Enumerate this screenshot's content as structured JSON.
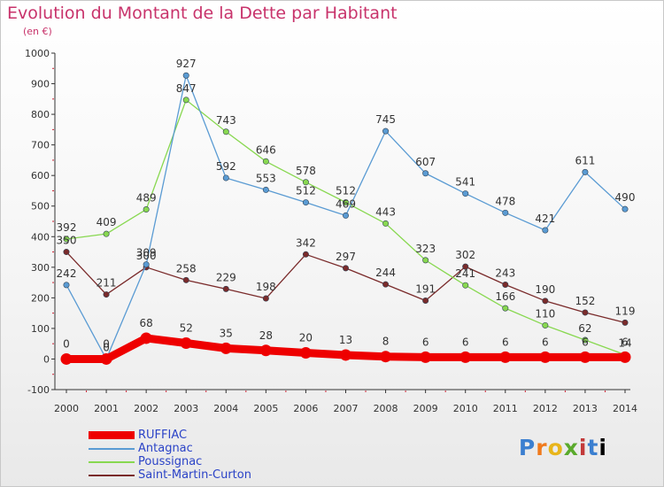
{
  "header": {
    "title": "Evolution du Montant de la Dette par Habitant",
    "subtitle": "(en €)"
  },
  "logo": {
    "letters": [
      "P",
      "r",
      "o",
      "x",
      "i",
      "t",
      "i"
    ]
  },
  "chart_data": {
    "type": "line",
    "title": "Evolution du Montant de la Dette par Habitant",
    "subtitle": "(en €)",
    "xlabel": "",
    "ylabel": "",
    "ylim": [
      -100,
      1000
    ],
    "yticks": [
      -100,
      0,
      100,
      200,
      300,
      400,
      500,
      600,
      700,
      800,
      900,
      1000
    ],
    "x": [
      "2000",
      "2001",
      "2002",
      "2003",
      "2004",
      "2005",
      "2006",
      "2007",
      "2008",
      "2009",
      "2010",
      "2011",
      "2012",
      "2013",
      "2014"
    ],
    "grid": false,
    "legend_position": "bottom-left",
    "series": [
      {
        "name": "RUFFIAC",
        "color": "#ee0000",
        "values": [
          0,
          0,
          68,
          52,
          35,
          28,
          20,
          13,
          8,
          6,
          6,
          6,
          6,
          6,
          6
        ],
        "labels": [
          "0",
          "0",
          "68",
          "52",
          "35",
          "28",
          "20",
          "13",
          "8",
          "6",
          "6",
          "6",
          "6",
          "6",
          "6"
        ]
      },
      {
        "name": "Antagnac",
        "color": "#5a9bd3",
        "values": [
          242,
          0,
          309,
          927,
          592,
          553,
          512,
          469,
          745,
          607,
          541,
          478,
          421,
          611,
          490
        ],
        "labels": [
          "242",
          "0",
          "309",
          "927",
          "592",
          "553",
          "512",
          "469",
          "745",
          "607",
          "541",
          "478",
          "421",
          "611",
          "490"
        ]
      },
      {
        "name": "Poussignac",
        "color": "#88d850",
        "values": [
          392,
          409,
          489,
          847,
          743,
          646,
          578,
          512,
          443,
          323,
          241,
          166,
          110,
          62,
          14
        ],
        "labels": [
          "392",
          "409",
          "489",
          "847",
          "743",
          "646",
          "578",
          "512",
          "443",
          "323",
          "241",
          "166",
          "110",
          "62",
          "14"
        ]
      },
      {
        "name": "Saint-Martin-Curton",
        "color": "#7a2b2b",
        "values": [
          350,
          211,
          300,
          258,
          229,
          198,
          342,
          297,
          244,
          191,
          302,
          243,
          190,
          152,
          119
        ],
        "labels": [
          "350",
          "211",
          "300",
          "258",
          "229",
          "198",
          "342",
          "297",
          "244",
          "191",
          "302",
          "243",
          "190",
          "152",
          "119"
        ]
      }
    ]
  }
}
